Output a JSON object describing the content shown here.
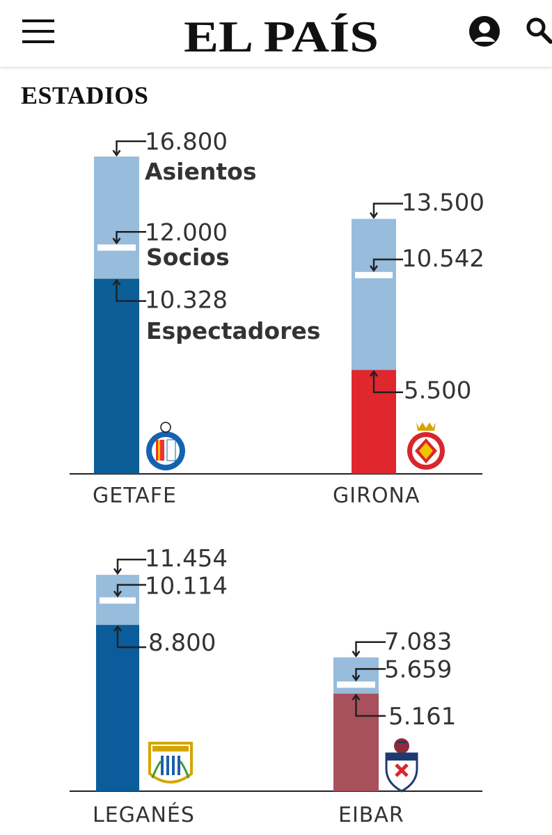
{
  "header": {
    "logo_text": "EL PAÍS",
    "menu_icon": "hamburger-menu-icon",
    "user_icon": "user-account-icon",
    "search_icon": "search-icon"
  },
  "section_title": "ESTADIOS",
  "colors": {
    "seats": "#97bcdc",
    "getafe": "#0b5e98",
    "girona": "#e0272d",
    "leganes": "#0a5d9a",
    "eibar": "#a8515d",
    "socios_marker": "#ffffff"
  },
  "legend": {
    "seats": "Asientos",
    "members": "Socios",
    "spectators": "Espectadores"
  },
  "chart_data": {
    "type": "bar",
    "title": "ESTADIOS",
    "series": [
      {
        "name": "Asientos"
      },
      {
        "name": "Socios"
      },
      {
        "name": "Espectadores"
      }
    ],
    "teams": [
      {
        "name": "GETAFE",
        "asientos": 16800,
        "socios": 12000,
        "espectadores": 10328,
        "asientos_label": "16.800",
        "socios_label": "12.000",
        "espectadores_label": "10.328",
        "color_key": "getafe",
        "crest": "getafe-crest-icon"
      },
      {
        "name": "GIRONA",
        "asientos": 13500,
        "socios": 10542,
        "espectadores": 5500,
        "asientos_label": "13.500",
        "socios_label": "10.542",
        "espectadores_label": "5.500",
        "color_key": "girona",
        "crest": "girona-crest-icon"
      },
      {
        "name": "LEGANÉS",
        "asientos": 11454,
        "socios": 10114,
        "espectadores": 8800,
        "asientos_label": "11.454",
        "socios_label": "10.114",
        "espectadores_label": "8.800",
        "color_key": "leganes",
        "crest": "leganes-crest-icon"
      },
      {
        "name": "EIBAR",
        "asientos": 7083,
        "socios": 5659,
        "espectadores": 5161,
        "asientos_label": "7.083",
        "socios_label": "5.659",
        "espectadores_label": "5.161",
        "color_key": "eibar",
        "crest": "eibar-crest-icon"
      }
    ]
  }
}
